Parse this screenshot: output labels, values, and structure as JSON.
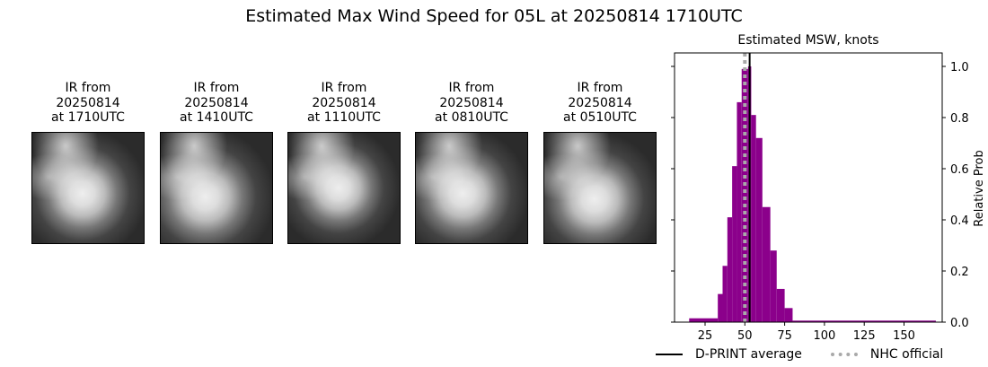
{
  "figure": {
    "title": "Estimated Max Wind Speed for 05L at 20250814 1710UTC"
  },
  "ir_images": [
    {
      "label": "IR from\n20250814\nat 1710UTC",
      "date": "20250814",
      "time": "1710UTC"
    },
    {
      "label": "IR from\n20250814\nat 1410UTC",
      "date": "20250814",
      "time": "1410UTC"
    },
    {
      "label": "IR from\n20250814\nat 1110UTC",
      "date": "20250814",
      "time": "1110UTC"
    },
    {
      "label": "IR from\n20250814\nat 0810UTC",
      "date": "20250814",
      "time": "0810UTC"
    },
    {
      "label": "IR from\n20250814\nat 0510UTC",
      "date": "20250814",
      "time": "0510UTC"
    }
  ],
  "legend": {
    "dprint_label": "D-PRINT average",
    "nhc_label": "NHC official"
  },
  "colors": {
    "bars": "#8b008b",
    "dprint_line": "#000000",
    "nhc_line": "#a9a9a9"
  },
  "chart_data": {
    "type": "bar",
    "title": "Estimated MSW, knots",
    "xlabel": "",
    "ylabel": "Relative Prob",
    "xlim": [
      7,
      175
    ],
    "ylim": [
      0,
      1.05
    ],
    "xticks": [
      25,
      50,
      75,
      100,
      125,
      150
    ],
    "yticks": [
      0.0,
      0.2,
      0.4,
      0.6,
      0.8,
      1.0
    ],
    "ytick_labels": [
      "0.0",
      "0.2",
      "0.4",
      "0.6",
      "0.8",
      "1.0"
    ],
    "y_axis_side": "right",
    "grid": false,
    "legend_position": "below",
    "bins": [
      {
        "x0": 15,
        "x1": 33,
        "value": 0.015
      },
      {
        "x0": 33,
        "x1": 36,
        "value": 0.11
      },
      {
        "x0": 36,
        "x1": 39,
        "value": 0.22
      },
      {
        "x0": 39,
        "x1": 42,
        "value": 0.41
      },
      {
        "x0": 42,
        "x1": 45,
        "value": 0.61
      },
      {
        "x0": 45,
        "x1": 48,
        "value": 0.86
      },
      {
        "x0": 48,
        "x1": 52,
        "value": 0.99
      },
      {
        "x0": 52,
        "x1": 54,
        "value": 1.0
      },
      {
        "x0": 54,
        "x1": 57,
        "value": 0.81
      },
      {
        "x0": 57,
        "x1": 61,
        "value": 0.72
      },
      {
        "x0": 61,
        "x1": 66,
        "value": 0.45
      },
      {
        "x0": 66,
        "x1": 70,
        "value": 0.28
      },
      {
        "x0": 70,
        "x1": 75,
        "value": 0.13
      },
      {
        "x0": 75,
        "x1": 80,
        "value": 0.055
      },
      {
        "x0": 80,
        "x1": 170,
        "value": 0.006
      }
    ],
    "dprint_average": 53,
    "nhc_official": 50,
    "series_names": [
      "D-PRINT average",
      "NHC official"
    ]
  }
}
